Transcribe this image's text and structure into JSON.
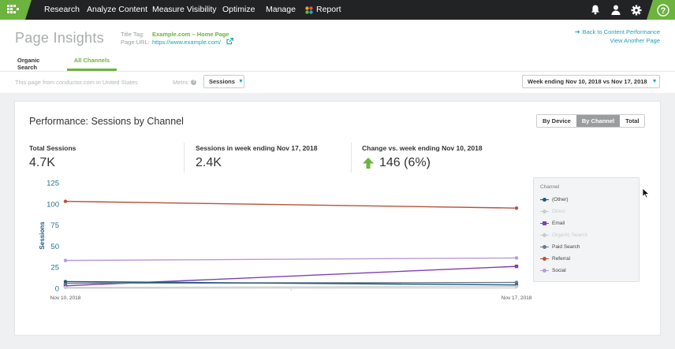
{
  "nav": {
    "items": [
      "Research",
      "Analyze Content",
      "Measure Visibility",
      "Optimize",
      "Manage"
    ],
    "report": "Report"
  },
  "header": {
    "title": "Page Insights",
    "title_tag_label": "Title Tag:",
    "title_tag_value": "Example.com – Home Page",
    "page_url_label": "Page URL:",
    "page_url_value": "https://www.example.com/",
    "back_link": "Back to Content Performance",
    "view_another": "View Another Page"
  },
  "tabs": [
    "Organic Search",
    "All Channels"
  ],
  "filters": {
    "source_text": "This page from conductor.com in United States",
    "metric_label": "Metric",
    "metric_value": "Sessions",
    "week_value": "Week ending Nov 10, 2018 vs Nov 17, 2018"
  },
  "card": {
    "title": "Performance: Sessions by Channel",
    "toggle": [
      "By Device",
      "By Channel",
      "Total"
    ],
    "toggle_active": "By Channel",
    "stats": [
      {
        "label": "Total Sessions",
        "value": "4.7K"
      },
      {
        "label": "Sessions in week ending Nov 17, 2018",
        "value": "2.4K"
      },
      {
        "label": "Change vs. week ending Nov 10, 2018",
        "value": "146 (6%)"
      }
    ]
  },
  "legend": {
    "title": "Channel",
    "items": [
      {
        "label": "(Other)",
        "color": "#1e5a78",
        "muted": false,
        "square": false
      },
      {
        "label": "Direct",
        "color": "#c9cbcc",
        "muted": true,
        "square": false
      },
      {
        "label": "Email",
        "color": "#7e3fb7",
        "muted": false,
        "square": true
      },
      {
        "label": "Organic Search",
        "color": "#c9cbcc",
        "muted": true,
        "square": false
      },
      {
        "label": "Paid Search",
        "color": "#6b7a8f",
        "muted": false,
        "square": false
      },
      {
        "label": "Referral",
        "color": "#b5533c",
        "muted": false,
        "square": false
      },
      {
        "label": "Social",
        "color": "#b79bd9",
        "muted": false,
        "square": false
      }
    ]
  },
  "chart_data": {
    "type": "line",
    "x": [
      "Nov 10, 2018",
      "Nov 17, 2018"
    ],
    "ylabel": "Sessions",
    "ylim": [
      0,
      125
    ],
    "yticks": [
      0,
      25,
      50,
      75,
      100,
      125
    ],
    "series": [
      {
        "name": "Referral",
        "values": [
          103,
          95
        ],
        "color": "#b5533c"
      },
      {
        "name": "Social",
        "values": [
          33,
          36
        ],
        "color": "#b79bd9"
      },
      {
        "name": "Email",
        "values": [
          3,
          26
        ],
        "color": "#7e3fb7"
      },
      {
        "name": "Paid Search",
        "values": [
          6,
          7
        ],
        "color": "#6b7a8f"
      },
      {
        "name": "(Other)",
        "values": [
          8,
          4
        ],
        "color": "#1e5a78"
      },
      {
        "name": "Direct",
        "values": [
          1,
          2
        ],
        "color": "#c9cbcc"
      }
    ]
  }
}
